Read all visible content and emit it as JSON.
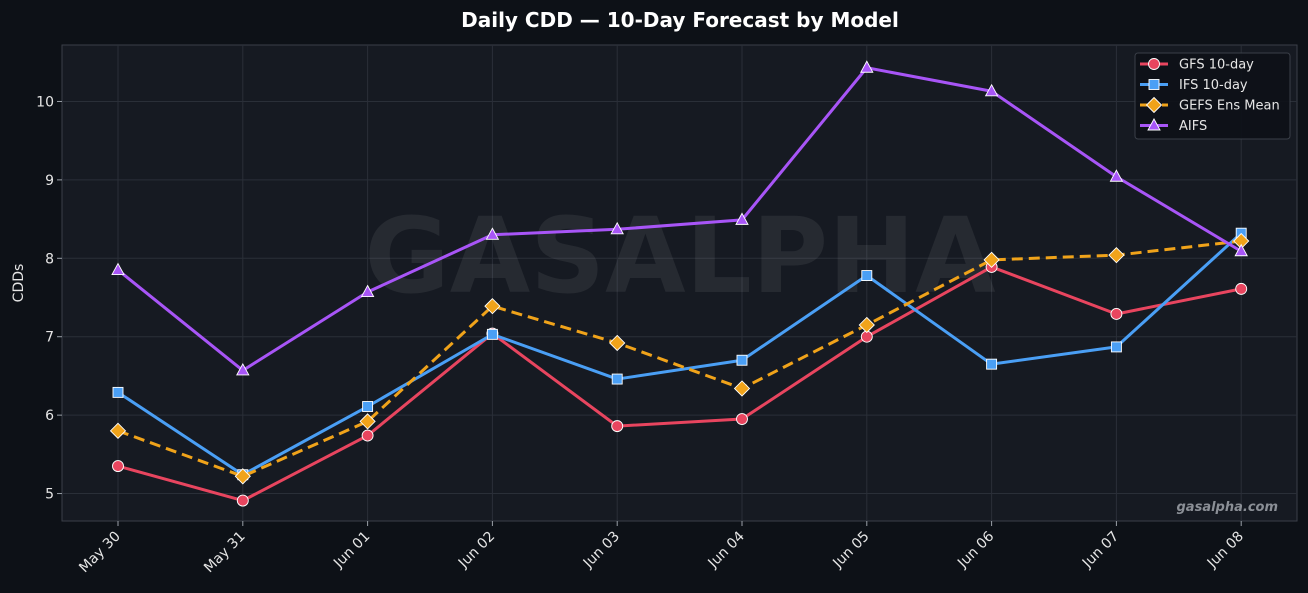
{
  "chart_data": {
    "type": "line",
    "title": "Daily CDD — 10-Day Forecast by Model",
    "xlabel": "",
    "ylabel": "CDDs",
    "categories": [
      "May 30",
      "May 31",
      "Jun 01",
      "Jun 02",
      "Jun 03",
      "Jun 04",
      "Jun 05",
      "Jun 06",
      "Jun 07",
      "Jun 08"
    ],
    "ylim": [
      4.65,
      10.72
    ],
    "yticks": [
      5,
      6,
      7,
      8,
      9,
      10
    ],
    "grid": true,
    "legend_position": "top-right",
    "series": [
      {
        "name": "GFS 10-day",
        "color": "#e8455f",
        "marker": "circle",
        "dashed": false,
        "values": [
          5.35,
          4.91,
          5.74,
          7.04,
          5.86,
          5.95,
          7.0,
          7.89,
          7.29,
          7.61
        ]
      },
      {
        "name": "IFS 10-day",
        "color": "#4a9ff5",
        "marker": "square",
        "dashed": false,
        "values": [
          6.29,
          5.24,
          6.11,
          7.03,
          6.46,
          6.7,
          7.78,
          6.65,
          6.87,
          8.32
        ]
      },
      {
        "name": "GEFS Ens Mean",
        "color": "#f0a31a",
        "marker": "diamond",
        "dashed": true,
        "values": [
          5.8,
          5.22,
          5.92,
          7.39,
          6.92,
          6.34,
          7.15,
          7.98,
          8.04,
          8.22
        ]
      },
      {
        "name": "AIFS",
        "color": "#a855f7",
        "marker": "triangle",
        "dashed": false,
        "values": [
          7.85,
          6.57,
          7.57,
          8.3,
          8.37,
          8.49,
          10.43,
          10.13,
          9.04,
          8.09
        ]
      }
    ],
    "watermark": "GASALPHA",
    "credit": "gasalpha.com"
  }
}
